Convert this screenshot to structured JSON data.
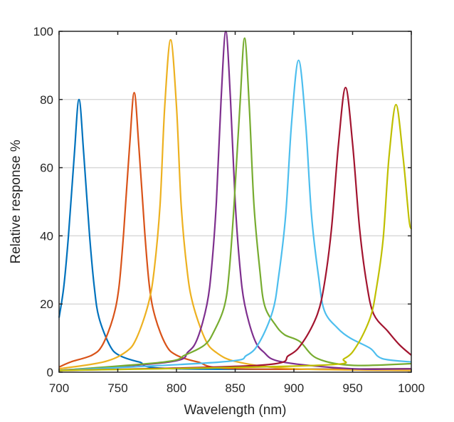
{
  "chart_data": {
    "type": "line",
    "title": "",
    "xlabel": "Wavelength (nm)",
    "ylabel": "Relative response %",
    "xlim": [
      700,
      1000
    ],
    "ylim": [
      0,
      100
    ],
    "xticks": [
      700,
      750,
      800,
      850,
      900,
      950,
      1000
    ],
    "yticks": [
      0,
      20,
      40,
      60,
      80,
      100
    ],
    "grid": "horizontal",
    "series": [
      {
        "color": "#0072BD",
        "x": [
          700,
          704,
          708,
          713,
          717,
          721,
          726,
          730,
          734,
          743,
          751,
          768,
          800,
          1000
        ],
        "y": [
          16,
          25,
          40,
          64,
          80,
          64,
          40,
          25,
          16,
          8,
          5,
          3,
          1,
          1
        ]
      },
      {
        "color": "#D95319",
        "x": [
          700,
          710,
          728,
          737,
          746,
          751,
          755,
          760,
          764,
          768,
          773,
          777,
          782,
          791,
          800,
          818,
          850,
          1000
        ],
        "y": [
          1.5,
          3,
          5,
          8,
          16,
          25,
          41,
          66,
          82,
          66,
          41,
          25,
          16,
          8,
          5,
          3,
          1,
          1
        ]
      },
      {
        "color": "#EDB120",
        "x": [
          700,
          738,
          757,
          766,
          776,
          781,
          786,
          790,
          795,
          800,
          804,
          809,
          814,
          824,
          833,
          852,
          900,
          1000
        ],
        "y": [
          1,
          3,
          6,
          10,
          20,
          30,
          49,
          78,
          97.5,
          78,
          49,
          30,
          20,
          10,
          6,
          3,
          1,
          0.5
        ]
      },
      {
        "color": "#7E2F8E",
        "x": [
          700,
          794,
          810,
          818,
          826,
          830,
          834,
          838,
          842,
          846,
          850,
          854,
          858,
          866,
          874,
          890,
          950,
          1000
        ],
        "y": [
          0.5,
          3,
          6,
          10,
          20,
          31,
          50,
          80,
          100,
          80,
          50,
          31,
          20,
          10,
          6,
          3,
          1,
          1
        ]
      },
      {
        "color": "#77AC30",
        "x": [
          700,
          790,
          807,
          824,
          832,
          841,
          845,
          849,
          854,
          858,
          862,
          866,
          871,
          875,
          884,
          892,
          905,
          920,
          950,
          1000
        ],
        "y": [
          0.5,
          3,
          5,
          8,
          12,
          19.6,
          30,
          49,
          78,
          98,
          78,
          49,
          30,
          19.6,
          14,
          11,
          9,
          4,
          2,
          2.5
        ]
      },
      {
        "color": "#4DBEEE",
        "x": [
          700,
          838,
          860,
          871,
          882,
          887,
          893,
          898,
          904,
          910,
          915,
          921,
          926,
          937,
          948,
          965,
          975,
          1000
        ],
        "y": [
          0.5,
          3,
          5,
          9,
          18,
          28,
          46,
          73,
          91.5,
          73,
          46,
          28,
          18,
          13,
          10,
          7,
          4,
          3
        ]
      },
      {
        "color": "#A2142F",
        "x": [
          700,
          870,
          896,
          908,
          920,
          926,
          932,
          938,
          944,
          950,
          956,
          962,
          968,
          980,
          990,
          1000
        ],
        "y": [
          0.5,
          2,
          5,
          9,
          17,
          26,
          42,
          67,
          83.5,
          67,
          42,
          26,
          17,
          12,
          8,
          5
        ]
      },
      {
        "color": "#BFBF00",
        "x": [
          700,
          920,
          943,
          954,
          965,
          970,
          976,
          981,
          987,
          993,
          998,
          1000
        ],
        "y": [
          0.5,
          2,
          4,
          8,
          16,
          24,
          39,
          63,
          78.5,
          63,
          45,
          42
        ]
      }
    ]
  }
}
